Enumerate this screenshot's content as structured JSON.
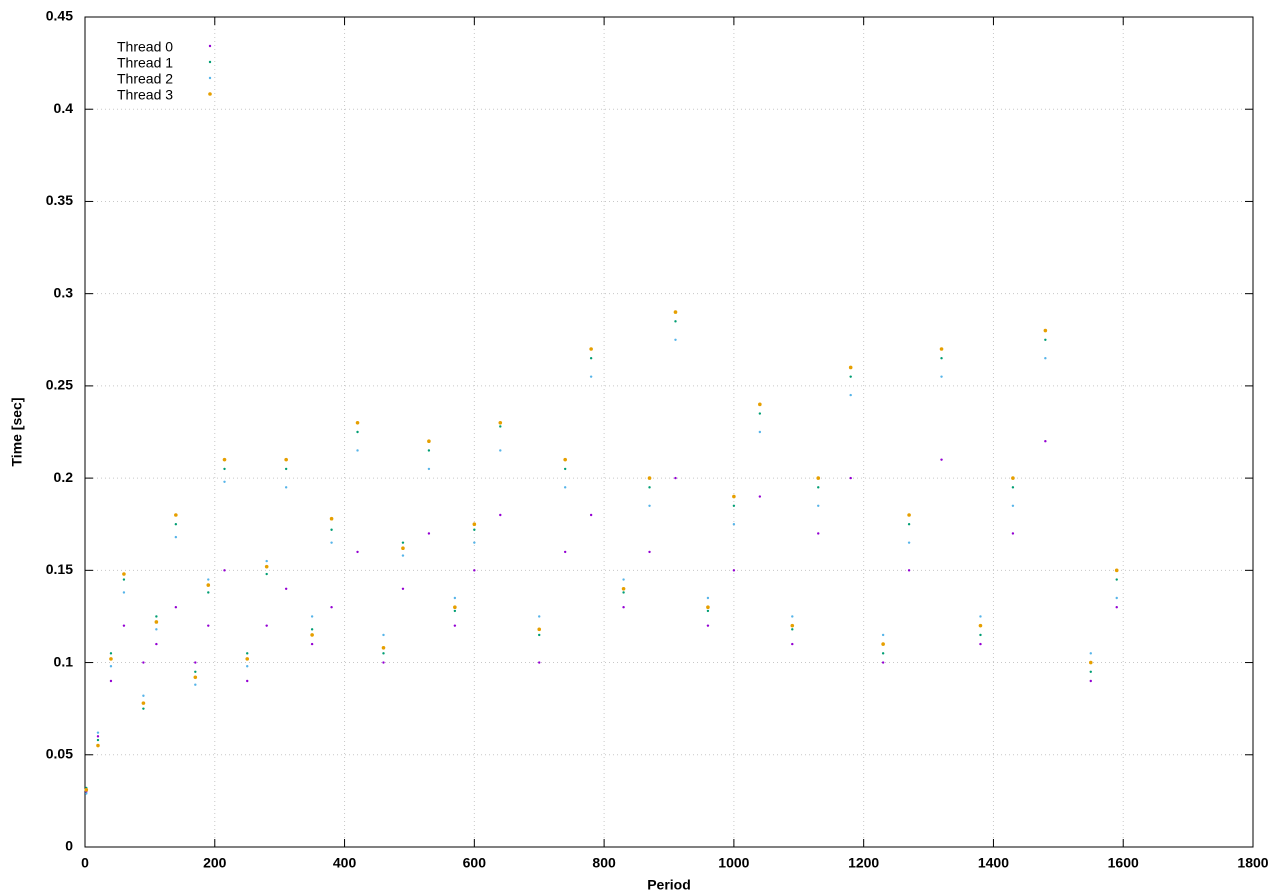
{
  "chart_data": {
    "type": "scatter",
    "x_label": "Period",
    "y_label": "Time [sec]",
    "xlim": [
      0,
      1800
    ],
    "xticks": [
      0,
      200,
      400,
      600,
      800,
      1000,
      1200,
      1400,
      1600,
      1800
    ],
    "ylim": [
      0,
      0.45
    ],
    "yticks": [
      0,
      0.05,
      0.1,
      0.15,
      0.2,
      0.25,
      0.3,
      0.35,
      0.4,
      0.45
    ],
    "grid": true,
    "legend_position": "top-left",
    "x": [
      2,
      20,
      40,
      60,
      90,
      110,
      140,
      170,
      190,
      215,
      250,
      280,
      310,
      350,
      380,
      420,
      460,
      490,
      530,
      570,
      600,
      640,
      700,
      740,
      780,
      830,
      870,
      910,
      960,
      1000,
      1040,
      1090,
      1130,
      1180,
      1230,
      1270,
      1320,
      1380,
      1430,
      1480,
      1550,
      1590
    ],
    "series": [
      {
        "name": "Thread 0",
        "color": "#9400d3",
        "values": [
          0.03,
          0.06,
          0.09,
          0.12,
          0.1,
          0.11,
          0.13,
          0.1,
          0.12,
          0.15,
          0.09,
          0.12,
          0.14,
          0.11,
          0.13,
          0.16,
          0.1,
          0.14,
          0.17,
          0.12,
          0.15,
          0.18,
          0.1,
          0.16,
          0.18,
          0.13,
          0.16,
          0.2,
          0.12,
          0.15,
          0.19,
          0.11,
          0.17,
          0.2,
          0.1,
          0.15,
          0.21,
          0.11,
          0.17,
          0.22,
          0.09,
          0.13
        ]
      },
      {
        "name": "Thread 1",
        "color": "#009e73",
        "values": [
          0.032,
          0.058,
          0.105,
          0.145,
          0.075,
          0.125,
          0.175,
          0.095,
          0.138,
          0.205,
          0.105,
          0.148,
          0.205,
          0.118,
          0.172,
          0.225,
          0.105,
          0.165,
          0.215,
          0.128,
          0.172,
          0.228,
          0.115,
          0.205,
          0.265,
          0.138,
          0.195,
          0.285,
          0.128,
          0.185,
          0.235,
          0.118,
          0.195,
          0.255,
          0.105,
          0.175,
          0.265,
          0.115,
          0.195,
          0.275,
          0.095,
          0.145
        ]
      },
      {
        "name": "Thread 2",
        "color": "#56b4e9",
        "values": [
          0.029,
          0.062,
          0.098,
          0.138,
          0.082,
          0.118,
          0.168,
          0.088,
          0.145,
          0.198,
          0.098,
          0.155,
          0.195,
          0.125,
          0.165,
          0.215,
          0.115,
          0.158,
          0.205,
          0.135,
          0.165,
          0.215,
          0.125,
          0.195,
          0.255,
          0.145,
          0.185,
          0.275,
          0.135,
          0.175,
          0.225,
          0.125,
          0.185,
          0.245,
          0.115,
          0.165,
          0.255,
          0.125,
          0.185,
          0.265,
          0.105,
          0.135
        ]
      },
      {
        "name": "Thread 3",
        "color": "#e69f00",
        "values": [
          0.031,
          0.055,
          0.102,
          0.148,
          0.078,
          0.122,
          0.18,
          0.092,
          0.142,
          0.21,
          0.102,
          0.152,
          0.21,
          0.115,
          0.178,
          0.23,
          0.108,
          0.162,
          0.22,
          0.13,
          0.175,
          0.23,
          0.118,
          0.21,
          0.27,
          0.14,
          0.2,
          0.29,
          0.13,
          0.19,
          0.24,
          0.12,
          0.2,
          0.26,
          0.11,
          0.18,
          0.27,
          0.12,
          0.2,
          0.28,
          0.1,
          0.15
        ]
      }
    ]
  }
}
